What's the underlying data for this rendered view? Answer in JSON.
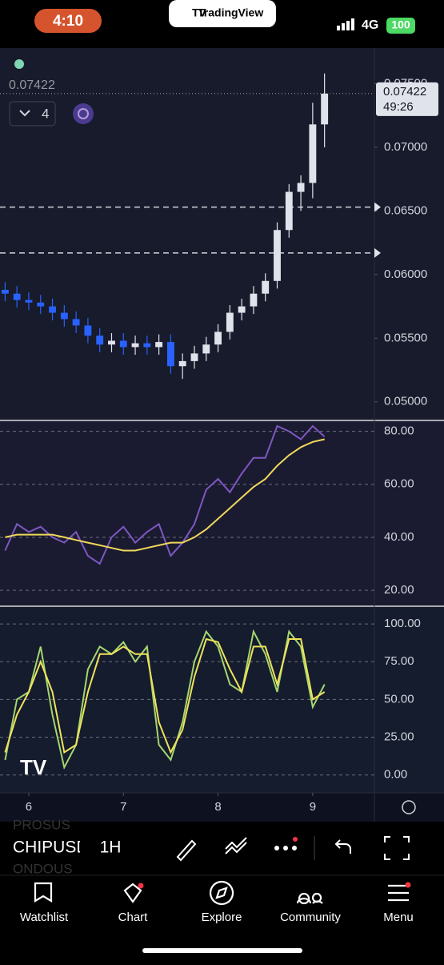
{
  "status_bar": {
    "time": "4:10",
    "app": "TradingView",
    "network": "4G",
    "battery": "100"
  },
  "header": {
    "price": "0.07422",
    "interval_count": "4"
  },
  "price_label": {
    "price": "0.07422",
    "countdown": "49:26"
  },
  "toolbar": {
    "symbol": "CHIPUSD",
    "prev_symbol": "PROSUS",
    "next_symbol": "ONDOUS",
    "interval": "1H"
  },
  "nav": [
    "Watchlist",
    "Chart",
    "Explore",
    "Community",
    "Menu"
  ],
  "chart_data": [
    {
      "type": "candlestick",
      "x": [
        5.75,
        5.875,
        6,
        6.125,
        6.25,
        6.375,
        6.5,
        6.625,
        6.75,
        6.875,
        7,
        7.125,
        7.25,
        7.375,
        7.5,
        7.625,
        7.75,
        7.875,
        8,
        8.125,
        8.25,
        8.375,
        8.5,
        8.625,
        8.75,
        8.875,
        9,
        9.125
      ],
      "open": [
        0.0588,
        0.0585,
        0.058,
        0.0578,
        0.0575,
        0.057,
        0.0565,
        0.056,
        0.0552,
        0.0545,
        0.0548,
        0.0543,
        0.0546,
        0.0543,
        0.0547,
        0.0528,
        0.0532,
        0.0538,
        0.0545,
        0.0555,
        0.057,
        0.0575,
        0.0585,
        0.0595,
        0.0635,
        0.0665,
        0.0672,
        0.0718
      ],
      "high": [
        0.0594,
        0.0591,
        0.0586,
        0.0584,
        0.0581,
        0.0576,
        0.0571,
        0.0566,
        0.0558,
        0.0554,
        0.0554,
        0.0552,
        0.0552,
        0.0553,
        0.0553,
        0.0538,
        0.0544,
        0.0551,
        0.0561,
        0.0576,
        0.0581,
        0.0591,
        0.0601,
        0.0641,
        0.0671,
        0.0678,
        0.0735,
        0.0758
      ],
      "low": [
        0.0579,
        0.0574,
        0.0572,
        0.0569,
        0.0564,
        0.0559,
        0.0554,
        0.0546,
        0.0539,
        0.0539,
        0.0537,
        0.0537,
        0.0537,
        0.0537,
        0.0522,
        0.0518,
        0.0526,
        0.0532,
        0.0539,
        0.0549,
        0.0564,
        0.0569,
        0.0579,
        0.0589,
        0.0629,
        0.065,
        0.066,
        0.07
      ],
      "close": [
        0.0585,
        0.058,
        0.0578,
        0.0575,
        0.057,
        0.0565,
        0.056,
        0.0552,
        0.0545,
        0.0548,
        0.0543,
        0.0546,
        0.0543,
        0.0547,
        0.0528,
        0.0532,
        0.0538,
        0.0545,
        0.0555,
        0.057,
        0.0575,
        0.0585,
        0.0595,
        0.0635,
        0.0665,
        0.0672,
        0.0718,
        0.07422
      ],
      "up_color": "#e0e3eb",
      "down_color": "#2962ff",
      "levels": [
        0.0653,
        0.0617
      ],
      "xlim": [
        5.696,
        9.652
      ],
      "ylim": [
        0.0486,
        0.0778
      ],
      "yticks": [
        {
          "value": 0.05,
          "label": "0.05000"
        },
        {
          "value": 0.055,
          "label": "0.05500"
        },
        {
          "value": 0.06,
          "label": "0.06000"
        },
        {
          "value": 0.065,
          "label": "0.06500"
        },
        {
          "value": 0.07,
          "label": "0.07000"
        },
        {
          "value": 0.075,
          "label": "0.07500"
        }
      ],
      "grid": false
    },
    {
      "type": "line",
      "x": [
        5.75,
        5.875,
        6,
        6.125,
        6.25,
        6.375,
        6.5,
        6.625,
        6.75,
        6.875,
        7,
        7.125,
        7.25,
        7.375,
        7.5,
        7.625,
        7.75,
        7.875,
        8,
        8.125,
        8.25,
        8.375,
        8.5,
        8.625,
        8.75,
        8.875,
        9,
        9.125
      ],
      "series": [
        {
          "color": "#7e57c2",
          "values": [
            35,
            45,
            42,
            44,
            40,
            38,
            42,
            33,
            30,
            40,
            44,
            38,
            42,
            45,
            33,
            38,
            45,
            58,
            62,
            57,
            64,
            70,
            70,
            82,
            80,
            77,
            82,
            78
          ]
        },
        {
          "color": "#f0d85a",
          "values": [
            40,
            41,
            41,
            41,
            41,
            40,
            39,
            38,
            37,
            36,
            35,
            35,
            36,
            37,
            38,
            38,
            40,
            43,
            47,
            51,
            55,
            59,
            62,
            67,
            71,
            74,
            76,
            77
          ]
        }
      ],
      "xlim": [
        5.696,
        9.652
      ],
      "ylim": [
        14.3,
        83.8
      ],
      "yticks": [
        {
          "value": 20,
          "label": "20.00"
        },
        {
          "value": 40,
          "label": "40.00"
        },
        {
          "value": 60,
          "label": "60.00"
        },
        {
          "value": 80,
          "label": "80.00"
        }
      ],
      "grid": true
    },
    {
      "type": "line",
      "x": [
        5.75,
        5.875,
        6,
        6.125,
        6.25,
        6.375,
        6.5,
        6.625,
        6.75,
        6.875,
        7,
        7.125,
        7.25,
        7.375,
        7.5,
        7.625,
        7.75,
        7.875,
        8,
        8.125,
        8.25,
        8.375,
        8.5,
        8.625,
        8.75,
        8.875,
        9,
        9.125
      ],
      "series": [
        {
          "color": "#a5d66f",
          "values": [
            10,
            50,
            55,
            85,
            40,
            5,
            20,
            70,
            85,
            80,
            88,
            75,
            85,
            20,
            10,
            35,
            75,
            95,
            85,
            60,
            55,
            95,
            80,
            55,
            95,
            85,
            45,
            60
          ]
        },
        {
          "color": "#f0e35a",
          "values": [
            15,
            40,
            55,
            75,
            55,
            15,
            20,
            55,
            80,
            80,
            85,
            80,
            80,
            35,
            15,
            30,
            65,
            90,
            88,
            70,
            55,
            85,
            85,
            60,
            90,
            90,
            50,
            55
          ]
        }
      ],
      "xlim": [
        5.696,
        9.652
      ],
      "ylim": [
        -11.8,
        111.2
      ],
      "yticks": [
        {
          "value": 0,
          "label": "0.00"
        },
        {
          "value": 25,
          "label": "25.00"
        },
        {
          "value": 50,
          "label": "50.00"
        },
        {
          "value": 75,
          "label": "75.00"
        },
        {
          "value": 100,
          "label": "100.00"
        }
      ],
      "xticks": [
        6,
        7,
        8,
        9
      ],
      "grid": true
    }
  ]
}
